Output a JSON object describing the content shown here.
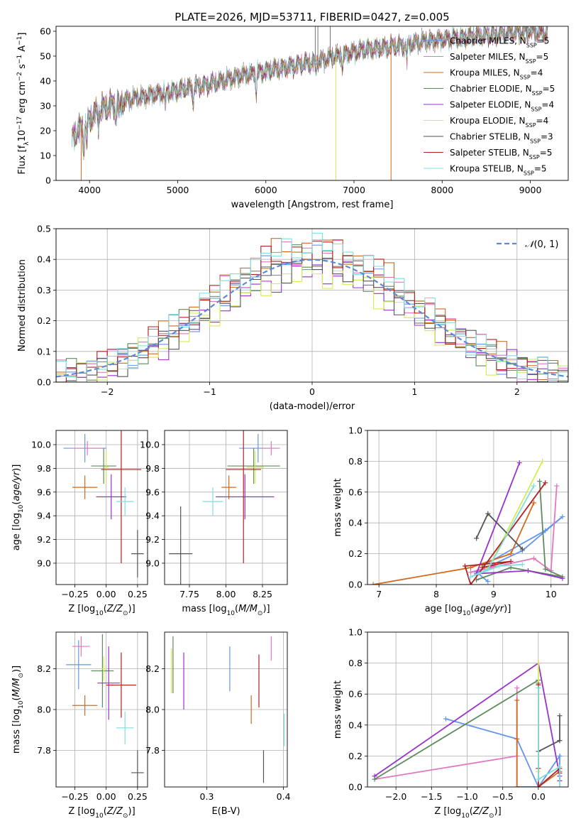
{
  "figure_title": "PLATE=2026, MJD=53711, FIBERID=0427, z=0.005",
  "chart_data": [
    {
      "id": "spectrum",
      "type": "line",
      "title": "PLATE=2026, MJD=53711, FIBERID=0427, z=0.005",
      "xlabel": "wavelength [Angstrom, rest frame]",
      "ylabel": "Flux [f_λ10^-17 erg cm^-2 s^-1 A^-1]",
      "xlim": [
        3620,
        9430
      ],
      "ylim": [
        0,
        62
      ],
      "xticks": [
        4000,
        5000,
        6000,
        7000,
        8000,
        9000
      ],
      "yticks": [
        0,
        10,
        20,
        30,
        40,
        50,
        60
      ],
      "legend_position": "right",
      "continuum_knots": {
        "x": [
          3800,
          3950,
          4100,
          4300,
          4500,
          4800,
          5100,
          5400,
          5700,
          6000,
          6300,
          6600,
          6900,
          7200,
          7500,
          7800,
          8100,
          8400,
          8700,
          9000,
          9200
        ],
        "y": [
          17,
          23,
          28,
          31,
          33,
          35,
          37,
          39,
          42,
          44,
          46,
          48,
          51,
          53,
          54,
          56,
          57,
          58,
          59,
          60,
          59
        ]
      },
      "series": [
        {
          "name": "Chabrier MILES, N_SSP=5",
          "color": "#6495ed"
        },
        {
          "name": "Salpeter MILES, N_SSP=5",
          "color": "#e377c2"
        },
        {
          "name": "Kroupa MILES, N_SSP=4",
          "color": "#d2691e"
        },
        {
          "name": "Chabrier ELODIE, N_SSP=5",
          "color": "#5f8b5f"
        },
        {
          "name": "Salpeter ELODIE, N_SSP=4",
          "color": "#9932cc"
        },
        {
          "name": "Kroupa ELODIE, N_SSP=4",
          "color": "#d4ec55"
        },
        {
          "name": "Chabrier STELIB, N_SSP=3",
          "color": "#555555"
        },
        {
          "name": "Salpeter STELIB, N_SSP=5",
          "color": "#b22222"
        },
        {
          "name": "Kroupa STELIB, N_SSP=5",
          "color": "#7fdfdf"
        }
      ]
    },
    {
      "id": "residuals",
      "type": "bar",
      "xlabel": "(data-model)/error",
      "ylabel": "Normed distribution",
      "xlim": [
        -2.5,
        2.5
      ],
      "ylim": [
        0,
        0.5
      ],
      "xticks": [
        -2,
        -1,
        0,
        1,
        2
      ],
      "yticks": [
        0.0,
        0.1,
        0.2,
        0.3,
        0.4,
        0.5
      ],
      "legend": "N(0,1)",
      "legend_position": "top-right",
      "bin_width": 0.1,
      "bins_start": -2.5
    },
    {
      "id": "age-vs-Z",
      "type": "scatter",
      "xlabel": "Z [log10(Z/Z⊙)]",
      "ylabel": "age [log10(age/yr)]",
      "xlim": [
        -0.4,
        0.33
      ],
      "ylim": [
        8.82,
        10.12
      ],
      "xticks": [
        -0.25,
        0.0,
        0.25
      ],
      "yticks": [
        9.0,
        9.2,
        9.4,
        9.6,
        9.8,
        10.0
      ],
      "points": [
        {
          "x": -0.17,
          "y": 9.97,
          "xerr": 0.17,
          "yerr": 0.12,
          "color": "#6495ed"
        },
        {
          "x": -0.15,
          "y": 9.97,
          "xerr": 0.12,
          "yerr": 0.06,
          "color": "#e377c2"
        },
        {
          "x": -0.17,
          "y": 9.64,
          "xerr": 0.1,
          "yerr": 0.1,
          "color": "#d2691e"
        },
        {
          "x": -0.02,
          "y": 9.82,
          "xerr": 0.1,
          "yerr": 0.15,
          "color": "#5f8b5f"
        },
        {
          "x": 0.04,
          "y": 9.56,
          "xerr": 0.12,
          "yerr": 0.19,
          "color": "#9932cc"
        },
        {
          "x": 0.0,
          "y": 9.81,
          "xerr": 0.02,
          "yerr": 0.14,
          "color": "#d4ec55"
        },
        {
          "x": 0.25,
          "y": 9.08,
          "xerr": 0.05,
          "yerr": 0.2,
          "color": "#555555"
        },
        {
          "x": 0.12,
          "y": 9.79,
          "xerr": 0.16,
          "yerr": 0.79,
          "color": "#b22222"
        },
        {
          "x": 0.15,
          "y": 9.52,
          "xerr": 0.07,
          "yerr": 0.12,
          "color": "#7fdfdf"
        }
      ]
    },
    {
      "id": "age-vs-mass",
      "type": "scatter",
      "xlabel": "mass [log10(M/M⊙)]",
      "ylabel": "",
      "xlim": [
        7.58,
        8.42
      ],
      "ylim": [
        8.82,
        10.12
      ],
      "xticks": [
        7.75,
        8.0,
        8.25
      ],
      "yticks": [
        9.0,
        9.2,
        9.4,
        9.6,
        9.8,
        10.0
      ],
      "points": [
        {
          "x": 8.22,
          "y": 9.97,
          "xerr": 0.13,
          "yerr": 0.12,
          "color": "#6495ed"
        },
        {
          "x": 8.31,
          "y": 9.97,
          "xerr": 0.06,
          "yerr": 0.06,
          "color": "#e377c2"
        },
        {
          "x": 8.02,
          "y": 9.64,
          "xerr": 0.05,
          "yerr": 0.1,
          "color": "#d2691e"
        },
        {
          "x": 8.19,
          "y": 9.82,
          "xerr": 0.18,
          "yerr": 0.15,
          "color": "#5f8b5f"
        },
        {
          "x": 8.13,
          "y": 9.56,
          "xerr": 0.2,
          "yerr": 0.19,
          "color": "#9932cc"
        },
        {
          "x": 8.2,
          "y": 9.81,
          "xerr": 0.06,
          "yerr": 0.14,
          "color": "#d4ec55"
        },
        {
          "x": 7.69,
          "y": 9.08,
          "xerr": 0.08,
          "yerr": 0.4,
          "color": "#555555"
        },
        {
          "x": 8.12,
          "y": 9.79,
          "xerr": 0.12,
          "yerr": 0.79,
          "color": "#b22222"
        },
        {
          "x": 7.91,
          "y": 9.52,
          "xerr": 0.07,
          "yerr": 0.12,
          "color": "#7fdfdf"
        }
      ]
    },
    {
      "id": "mass-weight-vs-age",
      "type": "line",
      "xlabel": "age [log10(age/yr)]",
      "ylabel": "mass weight",
      "xlim": [
        6.8,
        10.3
      ],
      "ylim": [
        0,
        1
      ],
      "xticks": [
        7,
        8,
        9,
        10
      ],
      "yticks": [
        0.0,
        0.2,
        0.4,
        0.6,
        0.8,
        1.0
      ],
      "series": [
        {
          "name": "Chabrier MILES",
          "color": "#6495ed",
          "x": [
            8.8,
            9.9,
            10.2,
            9.5,
            8.7,
            8.9
          ],
          "y": [
            0.12,
            0.35,
            0.44,
            0.22,
            0.08,
            0.02
          ]
        },
        {
          "name": "Salpeter MILES",
          "color": "#e377c2",
          "x": [
            10.1,
            10.0,
            9.7,
            8.6,
            9.0
          ],
          "y": [
            0.64,
            0.09,
            0.17,
            0.08,
            0.12
          ]
        },
        {
          "name": "Kroupa MILES",
          "color": "#d2691e",
          "x": [
            6.9,
            8.6,
            9.3,
            9.7
          ],
          "y": [
            0.0,
            0.11,
            0.2,
            0.53
          ]
        },
        {
          "name": "Chabrier ELODIE",
          "color": "#5f8b5f",
          "x": [
            9.8,
            9.9,
            10.2,
            9.3,
            8.7
          ],
          "y": [
            0.67,
            0.1,
            0.05,
            0.11,
            0.03
          ]
        },
        {
          "name": "Salpeter ELODIE",
          "color": "#9932cc",
          "x": [
            9.45,
            8.7,
            9.6,
            10.2
          ],
          "y": [
            0.79,
            0.07,
            0.09,
            0.04
          ]
        },
        {
          "name": "Kroupa ELODIE",
          "color": "#d4ec55",
          "x": [
            9.85,
            8.9,
            8.8
          ],
          "y": [
            0.8,
            0.1,
            0.12
          ]
        },
        {
          "name": "Chabrier STELIB",
          "color": "#555555",
          "x": [
            8.7,
            8.9,
            9.5
          ],
          "y": [
            0.3,
            0.46,
            0.23
          ]
        },
        {
          "name": "Salpeter STELIB",
          "color": "#b22222",
          "x": [
            9.9,
            8.6,
            8.5,
            9.3,
            8.8
          ],
          "y": [
            0.66,
            0.0,
            0.12,
            0.15,
            0.11
          ]
        },
        {
          "name": "Kroupa STELIB",
          "color": "#7fdfdf",
          "x": [
            9.7,
            8.9,
            8.6,
            9.1,
            9.5
          ],
          "y": [
            0.64,
            0.1,
            0.05,
            0.12,
            0.13
          ]
        }
      ]
    },
    {
      "id": "mass-vs-Z",
      "type": "scatter",
      "xlabel": "Z [log10(Z/Z⊙)]",
      "ylabel": "mass [log10(M/M⊙)]",
      "xlim": [
        -0.4,
        0.33
      ],
      "ylim": [
        7.62,
        8.38
      ],
      "xticks": [
        -0.25,
        0.0,
        0.25
      ],
      "yticks": [
        7.8,
        8.0,
        8.2
      ],
      "points": [
        {
          "x": -0.22,
          "y": 8.22,
          "xerr": 0.1,
          "yerr": 0.12,
          "color": "#6495ed"
        },
        {
          "x": -0.2,
          "y": 8.31,
          "xerr": 0.07,
          "yerr": 0.05,
          "color": "#e377c2"
        },
        {
          "x": -0.17,
          "y": 8.02,
          "xerr": 0.1,
          "yerr": 0.05,
          "color": "#d2691e"
        },
        {
          "x": -0.03,
          "y": 8.19,
          "xerr": 0.09,
          "yerr": 0.18,
          "color": "#5f8b5f"
        },
        {
          "x": 0.02,
          "y": 8.13,
          "xerr": 0.09,
          "yerr": 0.18,
          "color": "#9932cc"
        },
        {
          "x": -0.02,
          "y": 8.2,
          "xerr": 0.02,
          "yerr": 0.06,
          "color": "#d4ec55"
        },
        {
          "x": 0.25,
          "y": 7.69,
          "xerr": 0.05,
          "yerr": 0.11,
          "color": "#555555"
        },
        {
          "x": 0.12,
          "y": 8.12,
          "xerr": 0.12,
          "yerr": 0.16,
          "color": "#b22222"
        },
        {
          "x": 0.15,
          "y": 7.91,
          "xerr": 0.07,
          "yerr": 0.08,
          "color": "#7fdfdf"
        }
      ]
    },
    {
      "id": "mass-vs-ebv",
      "type": "scatter",
      "xlabel": "E(B-V)",
      "ylabel": "",
      "xlim": [
        0.245,
        0.405
      ],
      "ylim": [
        7.62,
        8.38
      ],
      "xticks": [
        0.3,
        0.4
      ],
      "yticks": [
        7.8,
        8.0,
        8.2
      ],
      "points": [
        {
          "x": 0.33,
          "y": 8.2,
          "yerr": 0.11,
          "color": "#6495ed"
        },
        {
          "x": 0.384,
          "y": 8.3,
          "yerr": 0.06,
          "color": "#e377c2"
        },
        {
          "x": 0.358,
          "y": 8.0,
          "yerr": 0.07,
          "color": "#d2691e"
        },
        {
          "x": 0.256,
          "y": 8.22,
          "yerr": 0.14,
          "color": "#5f8b5f"
        },
        {
          "x": 0.27,
          "y": 8.14,
          "yerr": 0.14,
          "color": "#9932cc"
        },
        {
          "x": 0.254,
          "y": 8.19,
          "yerr": 0.11,
          "color": "#d4ec55"
        },
        {
          "x": 0.374,
          "y": 7.72,
          "yerr": 0.08,
          "color": "#555555"
        },
        {
          "x": 0.368,
          "y": 8.14,
          "yerr": 0.13,
          "color": "#b22222"
        },
        {
          "x": 0.401,
          "y": 7.9,
          "yerr": 0.08,
          "color": "#7fdfdf"
        }
      ]
    },
    {
      "id": "mass-weight-vs-Z",
      "type": "line",
      "xlabel": "Z [log10(Z/Z⊙)]",
      "ylabel": "mass weight",
      "xlim": [
        -2.4,
        0.42
      ],
      "ylim": [
        0,
        1
      ],
      "xticks": [
        -2.0,
        -1.5,
        -1.0,
        -0.5,
        0.0
      ],
      "yticks": [
        0.0,
        0.2,
        0.4,
        0.6,
        0.8,
        1.0
      ],
      "series": [
        {
          "name": "Chabrier MILES",
          "color": "#6495ed",
          "x": [
            -1.3,
            -0.3,
            0.0,
            0.3,
            0.3
          ],
          "y": [
            0.44,
            0.31,
            0.0,
            0.2,
            0.04
          ]
        },
        {
          "name": "Salpeter MILES",
          "color": "#e377c2",
          "x": [
            -2.3,
            -0.3,
            -0.3,
            -0.3
          ],
          "y": [
            0.05,
            0.2,
            0.0,
            0.64
          ]
        },
        {
          "name": "Kroupa MILES",
          "color": "#d2691e",
          "x": [
            -0.3,
            -0.3,
            -0.3,
            0.0,
            0.3
          ],
          "y": [
            0.56,
            0.31,
            0.0,
            0.0,
            0.1
          ]
        },
        {
          "name": "Chabrier ELODIE",
          "color": "#5f8b5f",
          "x": [
            -2.3,
            0.0,
            0.0
          ],
          "y": [
            0.05,
            0.69,
            0.67
          ]
        },
        {
          "name": "Salpeter ELODIE",
          "color": "#9932cc",
          "x": [
            -2.3,
            0.0,
            0.3,
            0.3
          ],
          "y": [
            0.07,
            0.8,
            0.07,
            0.04
          ]
        },
        {
          "name": "Kroupa ELODIE",
          "color": "#d4ec55",
          "x": [
            0.0,
            0.0,
            0.0
          ],
          "y": [
            0.8,
            0.1,
            0.0
          ]
        },
        {
          "name": "Chabrier STELIB",
          "color": "#555555",
          "x": [
            0.0,
            0.3,
            0.3,
            0.3
          ],
          "y": [
            0.23,
            0.3,
            0.46,
            0.3
          ]
        },
        {
          "name": "Salpeter STELIB",
          "color": "#b22222",
          "x": [
            0.0,
            0.0,
            0.0,
            0.3,
            0.3
          ],
          "y": [
            0.66,
            0.12,
            0.0,
            0.12,
            0.09
          ]
        },
        {
          "name": "Kroupa STELIB",
          "color": "#7fdfdf",
          "x": [
            0.0,
            0.0,
            0.3,
            0.3
          ],
          "y": [
            0.64,
            0.05,
            0.13,
            0.0
          ]
        }
      ]
    }
  ]
}
